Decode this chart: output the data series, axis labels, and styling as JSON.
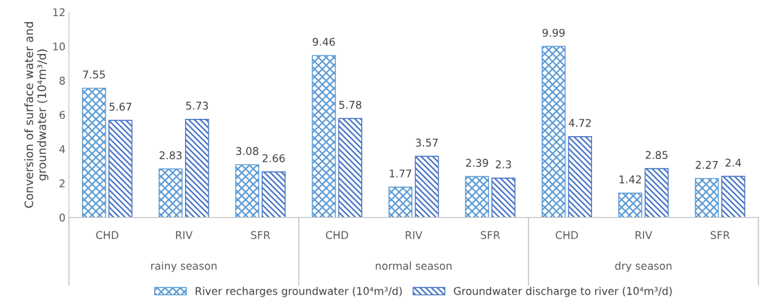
{
  "chart_data": {
    "type": "bar",
    "ylabel": "Conversion of surface water and groundwater (10⁴m³/d)",
    "categories": [
      "CHD",
      "RIV",
      "SFR",
      "CHD",
      "RIV",
      "SFR",
      "CHD",
      "RIV",
      "SFR"
    ],
    "series": [
      {
        "name": "River recharges groundwater (10⁴m³/d)",
        "color": "#5b9bd5",
        "values": [
          7.55,
          2.83,
          3.08,
          9.46,
          1.77,
          2.39,
          9.99,
          1.42,
          2.27
        ]
      },
      {
        "name": "Groundwater discharge to river (10⁴m³/d)",
        "color": "#4472c4",
        "values": [
          5.67,
          5.73,
          2.66,
          5.78,
          3.57,
          2.3,
          4.72,
          2.85,
          2.4
        ]
      }
    ],
    "annotations": [
      "rainy season",
      "normal season",
      "dry season"
    ],
    "ylim": [
      0,
      12
    ],
    "yticks": [
      0,
      2,
      4,
      6,
      8,
      10,
      12
    ],
    "data_labels": true,
    "grid": false,
    "legend": "bottom"
  }
}
